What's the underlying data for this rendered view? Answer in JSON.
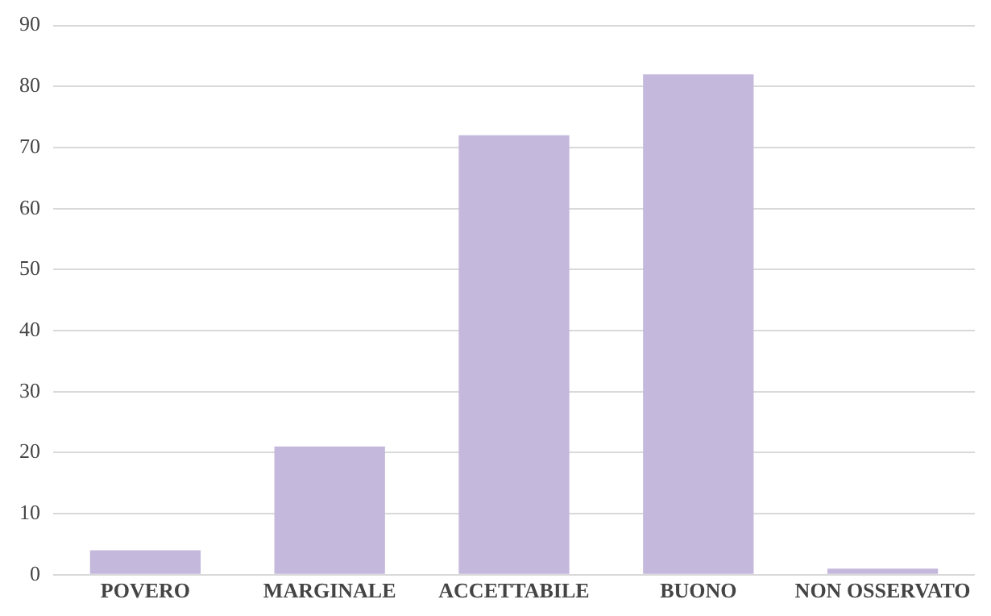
{
  "chart_data": {
    "type": "bar",
    "categories": [
      "POVERO",
      "MARGINALE",
      "ACCETTABILE",
      "BUONO",
      "NON OSSERVATO"
    ],
    "values": [
      4,
      21,
      72,
      82,
      1
    ],
    "color": "#c4b8dc",
    "ylim": [
      0,
      90
    ],
    "yticks": [
      0,
      10,
      20,
      30,
      40,
      50,
      60,
      70,
      80,
      90
    ],
    "grid": "y"
  }
}
